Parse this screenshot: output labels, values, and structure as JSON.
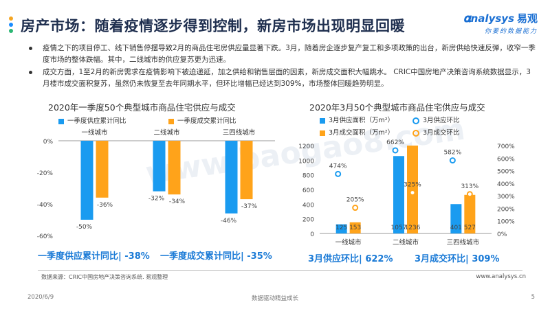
{
  "header": {
    "title": "房产市场：随着疫情逐步得到控制，新房市场出现明显回暖",
    "brand_name": "nalysys",
    "brand_cn": "易观",
    "brand_slogan": "你要的数据能力",
    "dot_colors": [
      "#f5a623",
      "#1a8cff",
      "#2bb673"
    ]
  },
  "bullets": [
    "疫情之下的项目停工、线下销售停摆导致2月的商品住宅房供应量显著下跌。3月，随着房企逐步复产复工和多项政策的出台，新房供给快速反弹，收窄一季度市场的整体跌幅。其中，二线城市的供应复苏更为迅速。",
    "成交方面，1至2月的新房需求在疫情影响下被迫递延，加之供给和销售层面的因素，新房成交面积大幅跳水。 CRIC中国房地产决策咨询系统数据显示，3月楼市成交面积复苏，虽然仍未恢复至去年同期水平，但环比增幅已经达到309%，市场整体回暖趋势明显。"
  ],
  "watermark": "www.baogao8.com",
  "colors": {
    "blue": "#1a9bf0",
    "orange": "#ffa31a"
  },
  "chart_data": [
    {
      "type": "bar",
      "title": "2020年一季度50个典型城市商品住宅供应与成交",
      "categories": [
        "一线城市",
        "二线城市",
        "三四线城市"
      ],
      "series": [
        {
          "name": "一季度供应累计同比",
          "values": [
            -50,
            -32,
            -46
          ],
          "labels": [
            "-50%",
            "-32%",
            "-46%"
          ]
        },
        {
          "name": "一季度成交累计同比",
          "values": [
            -36,
            -34,
            -37
          ],
          "labels": [
            "-36%",
            "-34%",
            "-37%"
          ]
        }
      ],
      "ylim": [
        -60,
        0
      ],
      "yticks": [
        0,
        -20,
        -40,
        -60
      ],
      "ytick_labels": [
        "0%",
        "-20%",
        "-40%",
        "-60%"
      ],
      "grid": false,
      "legend": "top",
      "summary": [
        "一季度供应累计同比| -38%",
        "一季度成交累计同比| -35%"
      ]
    },
    {
      "type": "bar",
      "title": "2020年3月50个典型城市商品住宅供应与成交",
      "categories": [
        "一线城市",
        "二线城市",
        "三四线城市"
      ],
      "series": [
        {
          "name": "3月供应面积（万m²）",
          "kind": "bar",
          "axis": "left",
          "values": [
            125,
            1057,
            401
          ],
          "labels": [
            "125",
            "1057",
            "401"
          ]
        },
        {
          "name": "3月成交面积（万m²）",
          "kind": "bar",
          "axis": "left",
          "values": [
            153,
            1236,
            527
          ],
          "labels": [
            "153",
            "1236",
            "527"
          ]
        },
        {
          "name": "3月供应环比",
          "kind": "scatter",
          "axis": "right",
          "values": [
            474,
            662,
            582
          ],
          "labels": [
            "474%",
            "662%",
            "582%"
          ]
        },
        {
          "name": "3月成交环比",
          "kind": "scatter",
          "axis": "right",
          "values": [
            205,
            325,
            313
          ],
          "labels": [
            "205%",
            "325%",
            "313%"
          ]
        }
      ],
      "ylim": [
        0,
        1200
      ],
      "yticks": [
        0,
        200,
        400,
        600,
        800,
        1000,
        1200
      ],
      "y2lim": [
        0,
        700
      ],
      "y2ticks": [
        0,
        100,
        200,
        300,
        400,
        500,
        600,
        700
      ],
      "y2tick_labels": [
        "0%",
        "100%",
        "200%",
        "300%",
        "400%",
        "500%",
        "600%",
        "700%"
      ],
      "grid": false,
      "legend": "top",
      "summary": [
        "3月供应环比| 622%",
        "3月成交环比| 309%"
      ]
    }
  ],
  "footer": {
    "source": "数据来源：CRIC中国房地产决策咨询系统. 易观整理",
    "site": "www.analysys.cn",
    "date": "2020/6/9",
    "slogan": "数据驱动精益成长",
    "page": "5"
  }
}
